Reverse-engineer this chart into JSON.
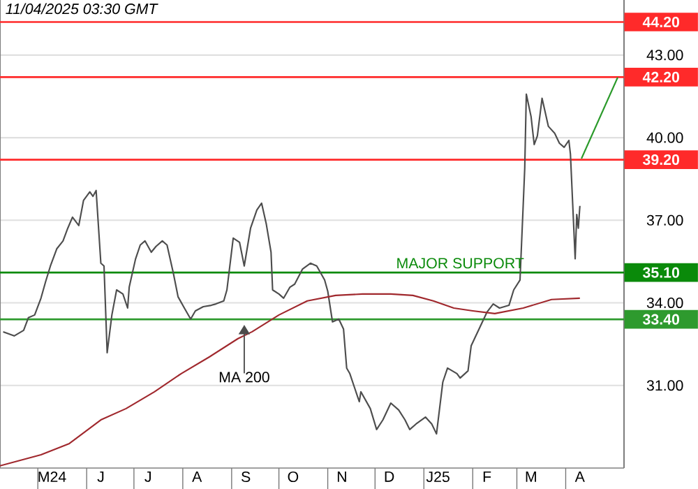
{
  "chart_data": {
    "type": "line",
    "annotations": [
      "11/04/2025 03:30 GMT",
      {
        "text": "MA 200",
        "x": "2024-09-09",
        "y": 33.2
      },
      {
        "text": "MAJOR SUPPORT",
        "x": "2025-01-24",
        "y": 35.1
      }
    ],
    "xlim": [
      "2024-04-07",
      "2025-05-08"
    ],
    "xticks": [
      {
        "value": "2024-05-01",
        "label": null
      },
      {
        "value": "2024-06-01",
        "label": null
      },
      {
        "value": "2024-07-01",
        "label": null
      },
      {
        "value": "2024-08-01",
        "label": null
      },
      {
        "value": "2024-09-01",
        "label": null
      },
      {
        "value": "2024-10-01",
        "label": null
      },
      {
        "value": "2024-11-01",
        "label": null
      },
      {
        "value": "2024-12-01",
        "label": null
      },
      {
        "value": "2025-01-01",
        "label": null
      },
      {
        "value": "2025-02-01",
        "label": null
      },
      {
        "value": "2025-03-01",
        "label": null
      },
      {
        "value": "2025-04-01",
        "label": null
      },
      {
        "value": "2024-05-10",
        "label": "M24"
      },
      {
        "value": "2024-06-10",
        "label": "J"
      },
      {
        "value": "2024-07-10",
        "label": "J"
      },
      {
        "value": "2024-08-10",
        "label": "A"
      },
      {
        "value": "2024-09-10",
        "label": "S"
      },
      {
        "value": "2024-10-10",
        "label": "O"
      },
      {
        "value": "2024-11-10",
        "label": "N"
      },
      {
        "value": "2024-12-10",
        "label": "D"
      },
      {
        "value": "2025-01-10",
        "label": "J25"
      },
      {
        "value": "2025-02-10",
        "label": "F"
      },
      {
        "value": "2025-03-10",
        "label": "M"
      },
      {
        "value": "2025-04-10",
        "label": "A"
      }
    ],
    "ylim": [
      28,
      45
    ],
    "yticks": [
      {
        "value": 31,
        "label": "31.00"
      },
      {
        "value": 34,
        "label": "34.00"
      },
      {
        "value": 37,
        "label": "37.00"
      },
      {
        "value": 40,
        "label": "40.00"
      },
      {
        "value": 43,
        "label": "43.00"
      }
    ],
    "grid": "y",
    "ref_lines": [
      {
        "axis": "y",
        "value": 44.2,
        "label": "44.20",
        "color": "#ff2a2a"
      },
      {
        "axis": "y",
        "value": 42.2,
        "label": "42.20",
        "color": "#ff2a2a"
      },
      {
        "axis": "y",
        "value": 39.2,
        "label": "39.20",
        "color": "#ff2a2a"
      },
      {
        "axis": "y",
        "value": 35.1,
        "label": "35.10",
        "color": "#0a8a0a"
      },
      {
        "axis": "y",
        "value": 33.4,
        "label": "33.40",
        "color": "#2e9a2e"
      }
    ],
    "series": [
      {
        "color": "#4d4d4d",
        "x": [
          "2024-04-09",
          "2024-04-16",
          "2024-04-22",
          "2024-04-25",
          "2024-04-29",
          "2024-05-03",
          "2024-05-06",
          "2024-05-09",
          "2024-05-13",
          "2024-05-17",
          "2024-05-20",
          "2024-05-23",
          "2024-05-27",
          "2024-05-30",
          "2024-06-03",
          "2024-06-05",
          "2024-06-07",
          "2024-06-10",
          "2024-06-12",
          "2024-06-14",
          "2024-06-17",
          "2024-06-20",
          "2024-06-24",
          "2024-06-27",
          "2024-06-28",
          "2024-07-02",
          "2024-07-05",
          "2024-07-08",
          "2024-07-12",
          "2024-07-15",
          "2024-07-19",
          "2024-07-22",
          "2024-07-26",
          "2024-07-29",
          "2024-08-02",
          "2024-08-06",
          "2024-08-09",
          "2024-08-14",
          "2024-08-19",
          "2024-08-22",
          "2024-08-27",
          "2024-08-29",
          "2024-09-02",
          "2024-09-06",
          "2024-09-09",
          "2024-09-13",
          "2024-09-17",
          "2024-09-20",
          "2024-09-23",
          "2024-09-26",
          "2024-09-27",
          "2024-10-01",
          "2024-10-04",
          "2024-10-08",
          "2024-10-11",
          "2024-10-16",
          "2024-10-21",
          "2024-10-25",
          "2024-10-30",
          "2024-11-01",
          "2024-11-04",
          "2024-11-08",
          "2024-11-11",
          "2024-11-13",
          "2024-11-15",
          "2024-11-21",
          "2024-11-22",
          "2024-11-28",
          "2024-12-02",
          "2024-12-06",
          "2024-12-11",
          "2024-12-16",
          "2024-12-20",
          "2024-12-23",
          "2024-12-27",
          "2025-01-02",
          "2025-01-06",
          "2025-01-09",
          "2025-01-13",
          "2025-01-16",
          "2025-01-22",
          "2025-01-24",
          "2025-01-29",
          "2025-01-31",
          "2025-02-05",
          "2025-02-10",
          "2025-02-14",
          "2025-02-18",
          "2025-02-24",
          "2025-02-27",
          "2025-03-03",
          "2025-03-05",
          "2025-03-06",
          "2025-03-07",
          "2025-03-10",
          "2025-03-12",
          "2025-03-14",
          "2025-03-17",
          "2025-03-19",
          "2025-03-21",
          "2025-03-25",
          "2025-03-28",
          "2025-03-31",
          "2025-04-03",
          "2025-04-04",
          "2025-04-07",
          "2025-04-08",
          "2025-04-09",
          "2025-04-10"
        ],
        "values": [
          32.95,
          32.8,
          33.0,
          33.46,
          33.56,
          34.17,
          34.78,
          35.34,
          35.96,
          36.25,
          36.71,
          37.11,
          36.81,
          37.72,
          38.03,
          37.87,
          38.08,
          35.44,
          35.34,
          32.19,
          33.56,
          34.47,
          34.32,
          33.81,
          34.57,
          35.59,
          36.1,
          36.25,
          35.84,
          36.05,
          36.25,
          36.1,
          35.08,
          34.22,
          33.81,
          33.41,
          33.71,
          33.86,
          33.91,
          33.96,
          34.07,
          34.47,
          36.35,
          36.2,
          35.34,
          36.71,
          37.37,
          37.62,
          36.86,
          35.84,
          34.47,
          34.32,
          34.17,
          34.57,
          34.68,
          35.23,
          35.44,
          35.34,
          34.83,
          34.42,
          33.31,
          33.41,
          33.05,
          31.63,
          31.43,
          30.41,
          30.77,
          30.16,
          29.4,
          29.75,
          30.36,
          30.11,
          29.75,
          29.4,
          29.6,
          29.85,
          29.6,
          29.24,
          31.12,
          31.63,
          31.43,
          31.27,
          31.53,
          32.44,
          33.05,
          33.66,
          33.96,
          33.81,
          33.91,
          34.47,
          34.83,
          37.52,
          38.89,
          41.58,
          40.77,
          39.75,
          40.06,
          41.43,
          40.92,
          40.41,
          40.16,
          39.8,
          39.65,
          39.9,
          39.4,
          35.6,
          37.21,
          36.71,
          37.52
        ]
      },
      {
        "color": "#a0282d",
        "x": [
          "2024-04-07",
          "2024-05-03",
          "2024-05-21",
          "2024-06-10",
          "2024-06-26",
          "2024-07-14",
          "2024-07-31",
          "2024-08-18",
          "2024-09-05",
          "2024-09-14",
          "2024-10-01",
          "2024-10-19",
          "2024-11-06",
          "2024-11-23",
          "2024-12-11",
          "2024-12-25",
          "2025-01-07",
          "2025-01-20",
          "2025-02-01",
          "2025-02-15",
          "2025-03-05",
          "2025-03-23",
          "2025-04-10"
        ],
        "values": [
          28.08,
          28.48,
          28.89,
          29.75,
          30.16,
          30.77,
          31.43,
          32.04,
          32.7,
          32.95,
          33.56,
          34.07,
          34.27,
          34.32,
          34.32,
          34.27,
          34.07,
          33.81,
          33.71,
          33.61,
          33.81,
          34.12,
          34.17
        ]
      },
      {
        "color": "#2a9a2a",
        "x": [
          "2025-04-11",
          "2025-05-04"
        ],
        "values": [
          39.24,
          42.19
        ]
      }
    ]
  }
}
